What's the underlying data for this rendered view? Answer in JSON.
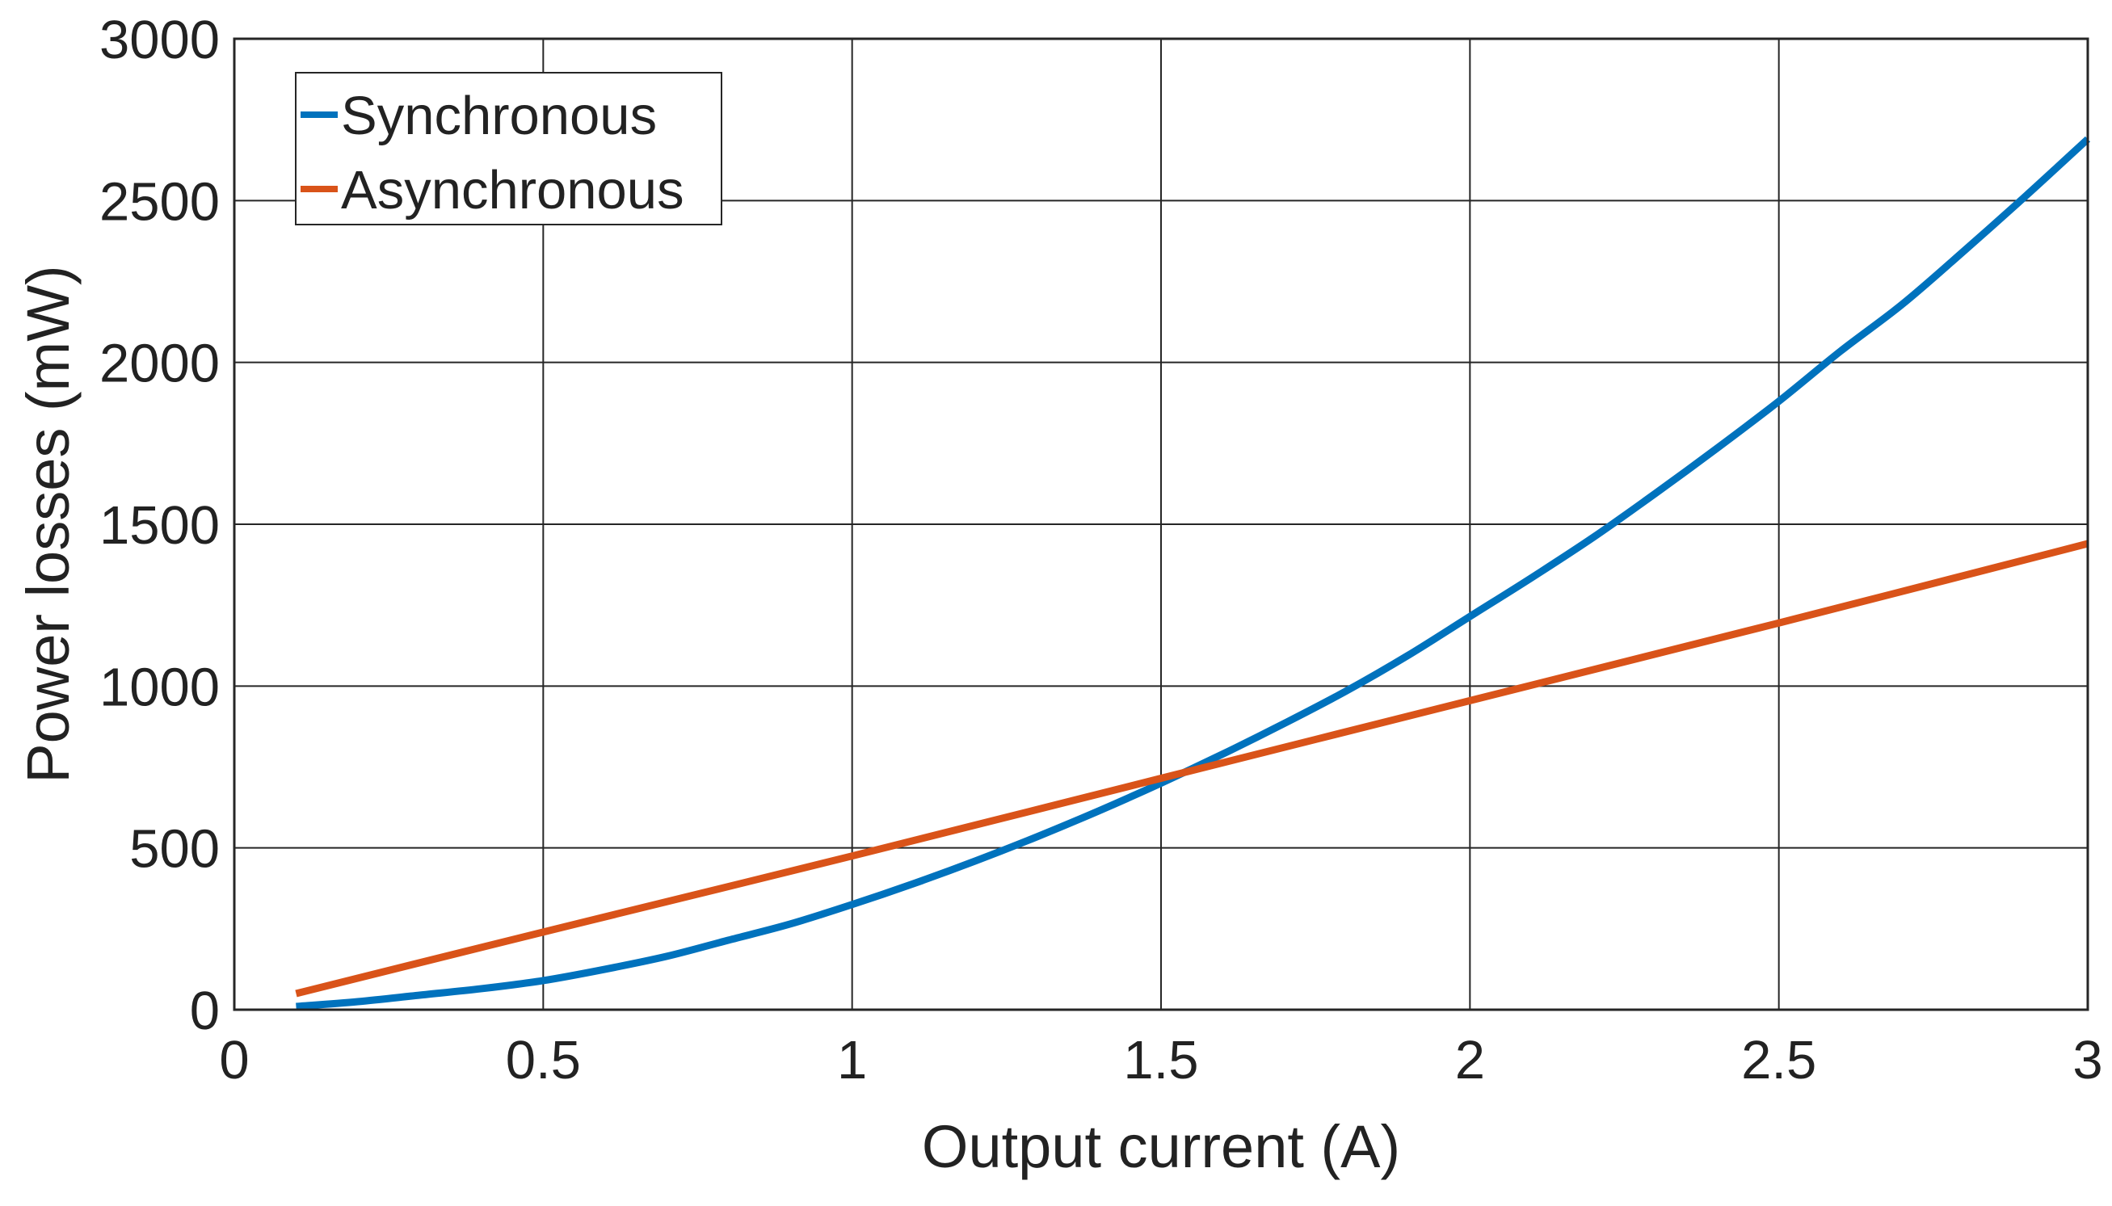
{
  "chart_data": {
    "type": "line",
    "title": "",
    "xlabel": "Output current (A)",
    "ylabel": "Power losses (mW)",
    "xlim": [
      0,
      3
    ],
    "ylim": [
      0,
      3000
    ],
    "x_ticks": [
      "0",
      "0.5",
      "1",
      "1.5",
      "2",
      "2.5",
      "3"
    ],
    "y_ticks": [
      "0",
      "500",
      "1000",
      "1500",
      "2000",
      "2500",
      "3000"
    ],
    "grid": true,
    "legend_position": "top-left",
    "series": [
      {
        "name": "Synchronous",
        "color": "#0072BD",
        "x": [
          0.1,
          0.2,
          0.3,
          0.4,
          0.5,
          0.6,
          0.7,
          0.8,
          0.9,
          1.0,
          1.1,
          1.2,
          1.3,
          1.4,
          1.5,
          1.6,
          1.7,
          1.8,
          1.9,
          2.0,
          2.1,
          2.2,
          2.3,
          2.4,
          2.5,
          2.6,
          2.7,
          2.8,
          2.9,
          3.0
        ],
        "y": [
          10,
          25,
          45,
          65,
          90,
          125,
          165,
          215,
          265,
          325,
          390,
          460,
          535,
          615,
          700,
          790,
          885,
          985,
          1095,
          1215,
          1335,
          1460,
          1595,
          1735,
          1880,
          2035,
          2180,
          2345,
          2515,
          2690
        ]
      },
      {
        "name": "Asynchronous",
        "color": "#D95319",
        "x": [
          0.1,
          0.5,
          1.0,
          1.5,
          2.0,
          2.5,
          3.0
        ],
        "y": [
          50,
          240,
          475,
          715,
          955,
          1195,
          1440
        ]
      }
    ]
  }
}
